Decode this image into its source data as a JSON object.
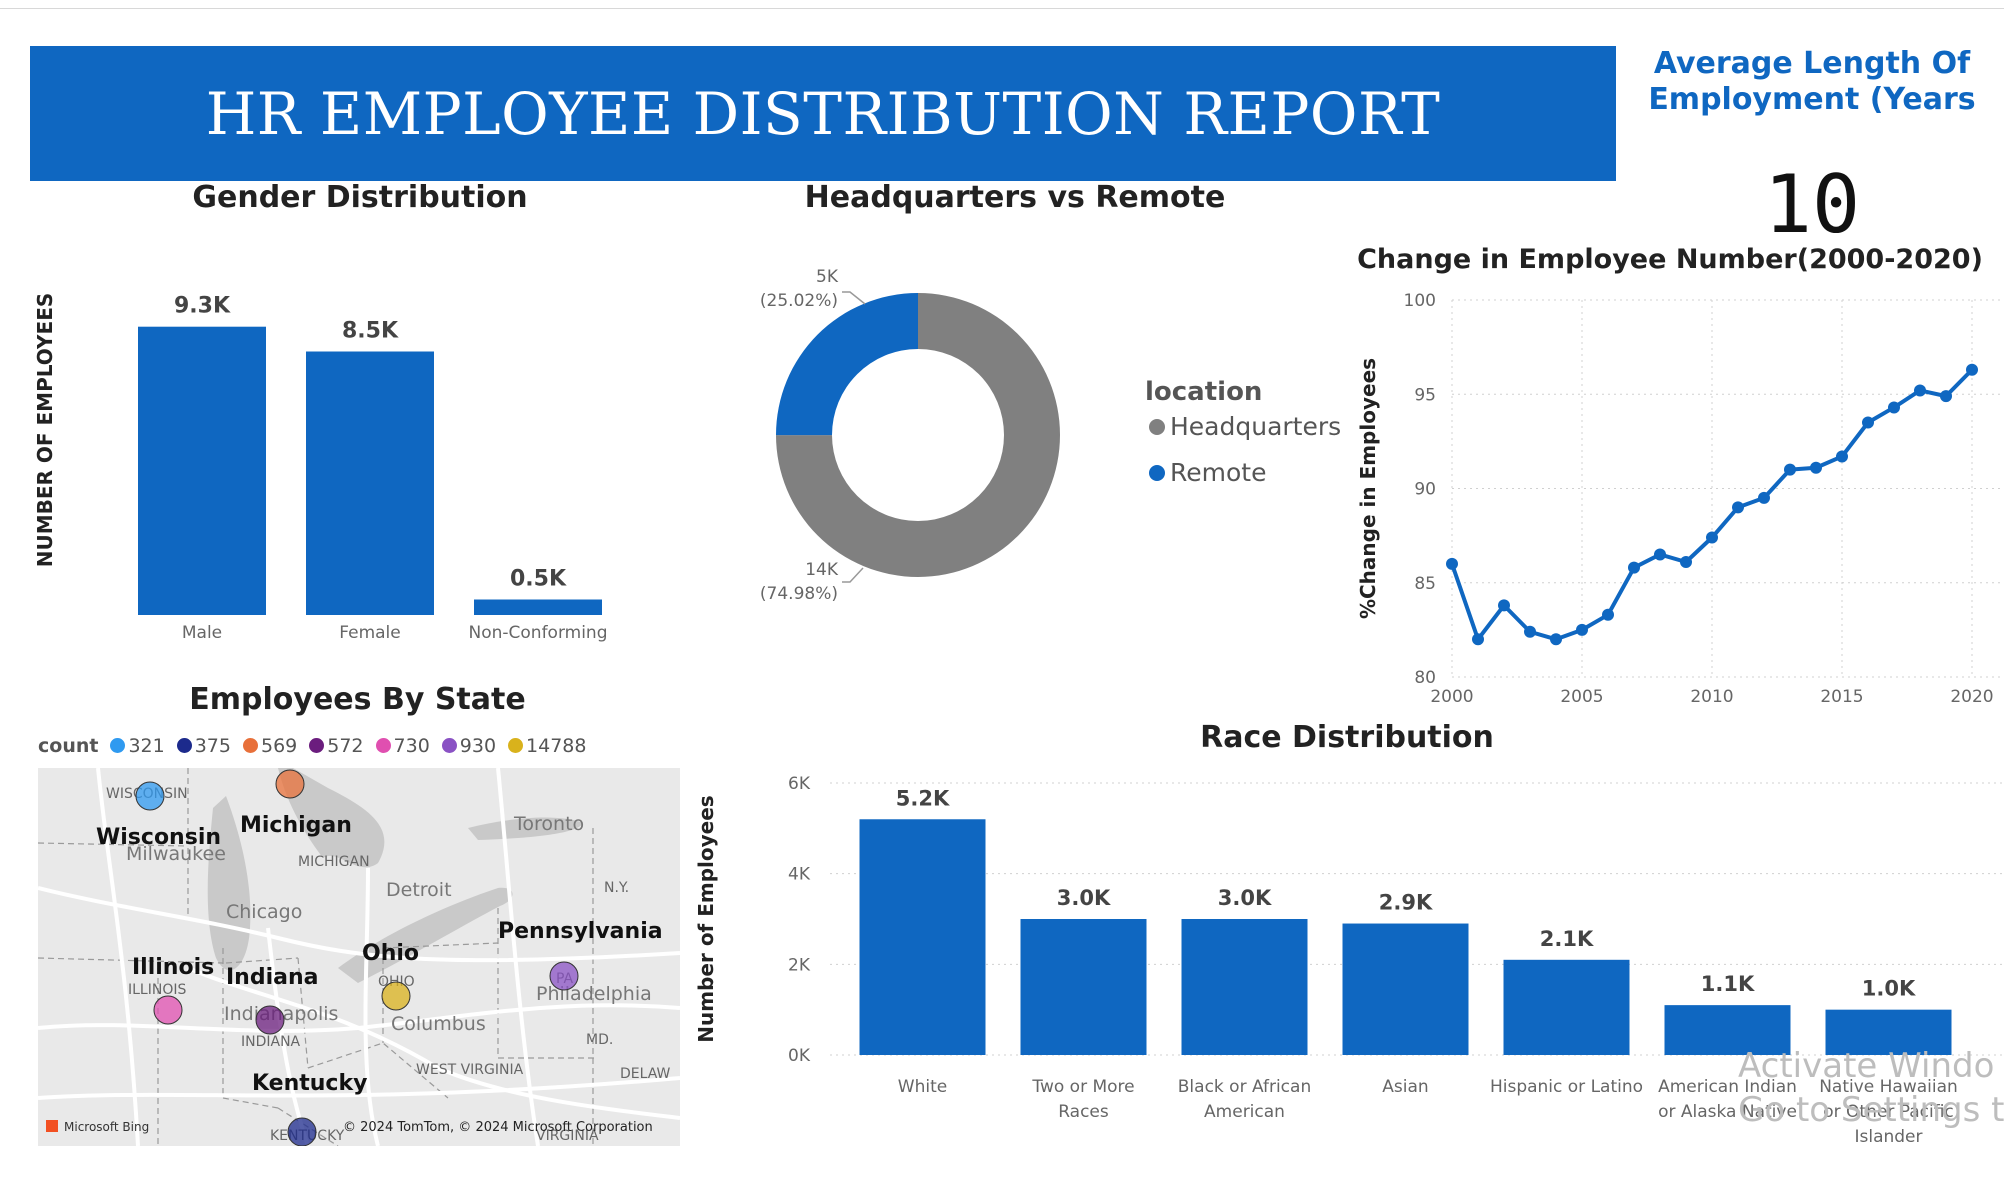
{
  "report": {
    "title": "HR EMPLOYEE DISTRIBUTION REPORT",
    "kpi_label": "Average Length Of Employment (Years",
    "kpi_value": "10",
    "watermark_line1": "Activate Windo",
    "watermark_line2": "Go to Settings to acti"
  },
  "colors": {
    "primary": "#0f67c1",
    "gray": "#808080",
    "text": "#252423"
  },
  "chart_data": [
    {
      "id": "gender",
      "type": "bar",
      "title": "Gender Distribution",
      "ylabel": "NUMBER OF EMPLOYEES",
      "categories": [
        "Male",
        "Female",
        "Non-Conforming"
      ],
      "values": [
        9.3,
        8.5,
        0.5
      ],
      "value_labels": [
        "9.3K",
        "8.5K",
        "0.5K"
      ],
      "ylim": [
        0,
        10
      ],
      "unit": "K"
    },
    {
      "id": "location",
      "type": "pie",
      "title": "Headquarters vs Remote",
      "legend_title": "location",
      "legend_position": "right",
      "slices": [
        {
          "name": "Headquarters",
          "value": 14,
          "percent": 74.98,
          "label": "14K",
          "pct_label": "(74.98%)",
          "color": "#808080"
        },
        {
          "name": "Remote",
          "value": 5,
          "percent": 25.02,
          "label": "5K",
          "pct_label": "(25.02%)",
          "color": "#0f67c1"
        }
      ]
    },
    {
      "id": "change",
      "type": "line",
      "title": "Change in Employee Number(2000-2020)",
      "ylabel": "%Change in Employees",
      "x": [
        2000,
        2001,
        2002,
        2003,
        2004,
        2005,
        2006,
        2007,
        2008,
        2009,
        2010,
        2011,
        2012,
        2013,
        2014,
        2015,
        2016,
        2017,
        2018,
        2019,
        2020
      ],
      "values": [
        86.0,
        82.0,
        83.8,
        82.4,
        82.0,
        82.5,
        83.3,
        85.8,
        86.5,
        86.1,
        87.4,
        89.0,
        89.5,
        91.0,
        91.1,
        91.7,
        93.5,
        94.3,
        95.2,
        94.9,
        96.3
      ],
      "xlim": [
        2000,
        2020
      ],
      "ylim": [
        80,
        100
      ],
      "xticks": [
        2000,
        2005,
        2010,
        2015,
        2020
      ],
      "yticks": [
        80,
        85,
        90,
        95,
        100
      ],
      "grid": true
    },
    {
      "id": "race",
      "type": "bar",
      "title": "Race Distribution",
      "ylabel": "Number of Employees",
      "categories": [
        [
          "White"
        ],
        [
          "Two or More",
          "Races"
        ],
        [
          "Black or African",
          "American"
        ],
        [
          "Asian"
        ],
        [
          "Hispanic or Latino"
        ],
        [
          "American Indian",
          "or Alaska Native"
        ],
        [
          "Native Hawaiian",
          "or Other Pacific",
          "Islander"
        ]
      ],
      "values": [
        5.2,
        3.0,
        3.0,
        2.9,
        2.1,
        1.1,
        1.0
      ],
      "value_labels": [
        "5.2K",
        "3.0K",
        "3.0K",
        "2.9K",
        "2.1K",
        "1.1K",
        "1.0K"
      ],
      "ylim": [
        0,
        6
      ],
      "yticks": [
        0,
        2,
        4,
        6
      ],
      "ytick_labels": [
        "0K",
        "2K",
        "4K",
        "6K"
      ],
      "grid": true
    },
    {
      "id": "state",
      "type": "scatter",
      "title": "Employees By State",
      "legend_title": "count",
      "legend_position": "top-left",
      "legend": [
        {
          "value": "321",
          "color": "#2f9af0"
        },
        {
          "value": "375",
          "color": "#1c2a8c"
        },
        {
          "value": "569",
          "color": "#e8703a"
        },
        {
          "value": "572",
          "color": "#6b1d7e"
        },
        {
          "value": "730",
          "color": "#e04fb0"
        },
        {
          "value": "930",
          "color": "#8a52c4"
        },
        {
          "value": "14788",
          "color": "#d9b21c"
        }
      ],
      "points": [
        {
          "state": "Wisconsin",
          "count": 321,
          "color": "#2f9af0"
        },
        {
          "state": "Kentucky",
          "count": 375,
          "color": "#1c2a8c"
        },
        {
          "state": "Michigan",
          "count": 569,
          "color": "#e8703a"
        },
        {
          "state": "Indiana",
          "count": 572,
          "color": "#6b1d7e"
        },
        {
          "state": "Illinois",
          "count": 730,
          "color": "#e04fb0"
        },
        {
          "state": "Pennsylvania",
          "count": 930,
          "color": "#8a52c4"
        },
        {
          "state": "Ohio",
          "count": 14788,
          "color": "#d9b21c"
        }
      ],
      "map_labels": {
        "states_bold": [
          "Wisconsin",
          "Michigan",
          "Illinois",
          "Indiana",
          "Ohio",
          "Pennsylvania",
          "Kentucky"
        ],
        "states_small": [
          "WISCONSIN",
          "MICHIGAN",
          "ILLINOIS",
          "INDIANA",
          "OHIO",
          "PA",
          "N.Y.",
          "MD.",
          "DELAW",
          "WEST VIRGINIA",
          "VIRGINIA",
          "KENTUCKY"
        ],
        "cities": [
          "Milwaukee",
          "Chicago",
          "Detroit",
          "Toronto",
          "Indianapolis",
          "Columbus",
          "Philadelphia"
        ],
        "attribution": "© 2024 TomTom, © 2024 Microsoft Corporation",
        "brand": "Microsoft Bing"
      }
    }
  ]
}
